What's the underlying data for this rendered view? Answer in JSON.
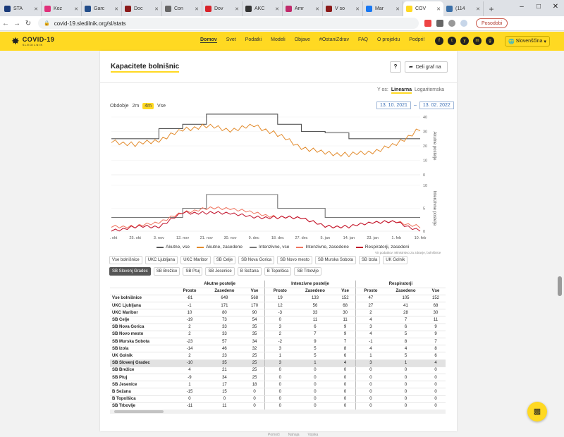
{
  "browser": {
    "tabs": [
      {
        "label": "STA",
        "color": "#1a3a7a"
      },
      {
        "label": "Koz",
        "color": "#e0307a"
      },
      {
        "label": "Garc",
        "color": "#234d8a"
      },
      {
        "label": "Doc",
        "color": "#8b1a1a"
      },
      {
        "label": "Con",
        "color": "#666666"
      },
      {
        "label": "Dov",
        "color": "#d8232a"
      },
      {
        "label": "AKC",
        "color": "#333333"
      },
      {
        "label": "Amr",
        "color": "#c02a6b"
      },
      {
        "label": "V so",
        "color": "#8b1a1a"
      },
      {
        "label": "Mar",
        "color": "#1877f2"
      },
      {
        "label": "COV",
        "color": "#ffd922"
      },
      {
        "label": "(114",
        "color": "#3a6fa8"
      }
    ],
    "url": "covid-19.sledilnik.org/sl/stats",
    "update_label": "Posodobi"
  },
  "site": {
    "logo_title": "COVID-19",
    "logo_sub": "SLEDILNIK",
    "nav": [
      "Domov",
      "Svet",
      "Podatki",
      "Modeli",
      "Objave",
      "#OstaniZdrav",
      "FAQ",
      "O projektu",
      "Podpri!"
    ],
    "active_nav": "Domov",
    "social": [
      "f",
      "t",
      "y",
      "m",
      "g"
    ],
    "language": "Slovenščina"
  },
  "panel": {
    "title": "Kapacitete bolnišnic",
    "help": "?",
    "share": "Deli graf na",
    "yaxis_label": "Y os:",
    "yaxis_linear": "Linearna",
    "yaxis_log": "Logaritemska",
    "period_label": "Obdobje",
    "period_options": [
      "2m",
      "4m",
      "Vse"
    ],
    "period_selected": "4m",
    "date_from": "13. 10. 2021",
    "date_sep": "–",
    "date_to": "13. 02. 2022",
    "chart1_axis_title": "Akutne postelje",
    "chart2_axis_title": "Intenzivne postelje",
    "source": "Vir podatkov: Ministrstvo za zdravje, bolnišnice"
  },
  "chart_data": [
    {
      "type": "line",
      "title": "",
      "ylabel": "Akutne postelje",
      "ylim": [
        0,
        40
      ],
      "yticks": [
        0,
        10,
        20,
        30,
        40
      ],
      "x": [
        "16. okt",
        "25. okt",
        "3. nov",
        "12. nov",
        "21. nov",
        "30. nov",
        "9. dec",
        "18. dec",
        "27. dec",
        "5. jan",
        "14. jan",
        "23. jan",
        "1. feb",
        "10. feb"
      ],
      "series": [
        {
          "name": "Akutne, vse",
          "color": "#555555",
          "values": [
            25,
            25,
            32,
            35,
            42,
            42,
            42,
            35,
            30,
            29,
            25,
            25,
            25,
            25
          ]
        },
        {
          "name": "Akutne, zasedene",
          "color": "#e28a2b",
          "values": [
            23,
            21,
            24,
            31,
            34,
            31,
            34,
            28,
            19,
            15,
            14,
            16,
            21,
            32
          ]
        }
      ]
    },
    {
      "type": "line",
      "title": "",
      "ylabel": "Intenzivne postelje",
      "ylim": [
        0,
        10
      ],
      "yticks": [
        0,
        5,
        10
      ],
      "x": [
        "16. okt",
        "25. okt",
        "3. nov",
        "12. nov",
        "21. nov",
        "30. nov",
        "9. dec",
        "18. dec",
        "27. dec",
        "5. jan",
        "14. jan",
        "23. jan",
        "1. feb",
        "10. feb"
      ],
      "series": [
        {
          "name": "Intenzivne, vse",
          "color": "#777777",
          "values": [
            3,
            3,
            3,
            5,
            8,
            8,
            8,
            5,
            5,
            3,
            3,
            3,
            3,
            3
          ]
        },
        {
          "name": "Intenzivne, zasedene",
          "color": "#f07560",
          "values": [
            1,
            1,
            2,
            4,
            5,
            5,
            4,
            3,
            3,
            1,
            1,
            2,
            2,
            1
          ]
        },
        {
          "name": "Respiratorji, zasedeni",
          "color": "#c0102a",
          "values": [
            0,
            1,
            1,
            4,
            4,
            4,
            3,
            3,
            3,
            1,
            1,
            2,
            2,
            0
          ]
        }
      ]
    }
  ],
  "legend": [
    "Akutne, vse",
    "Akutne, zasedene",
    "Intenzivne, vse",
    "Intenzivne, zasedene",
    "Respiratorji, zasedeni"
  ],
  "filters": [
    "Vse bolnišnice",
    "UKC Ljubljana",
    "UKC Maribor",
    "SB Celje",
    "SB Nova Gorica",
    "SB Novo mesto",
    "SB Murska Sobota",
    "SB Izola",
    "UK Golnik",
    "SB Slovenj Gradec",
    "SB Brežice",
    "SB Ptuj",
    "SB Jesenice",
    "B Sežana",
    "B Topolšica",
    "SB Trbovlje"
  ],
  "filter_selected": "SB Slovenj Gradec",
  "table": {
    "groups": [
      "Akutne postelje",
      "Intenzivne postelje",
      "Respiratorji"
    ],
    "subheaders": [
      "Prosto",
      "Zasedeno",
      "Vse"
    ],
    "selected_row": "SB Slovenj Gradec",
    "rows": [
      [
        "Vse bolnišnice",
        "-81",
        "649",
        "568",
        "19",
        "133",
        "152",
        "47",
        "105",
        "152"
      ],
      [
        "UKC Ljubljana",
        "-1",
        "171",
        "170",
        "12",
        "56",
        "68",
        "27",
        "41",
        "68"
      ],
      [
        "UKC Maribor",
        "10",
        "80",
        "90",
        "-3",
        "33",
        "30",
        "2",
        "28",
        "30"
      ],
      [
        "SB Celje",
        "-19",
        "73",
        "54",
        "0",
        "11",
        "11",
        "4",
        "7",
        "11"
      ],
      [
        "SB Nova Gorica",
        "2",
        "33",
        "35",
        "3",
        "6",
        "9",
        "3",
        "6",
        "9"
      ],
      [
        "SB Novo mesto",
        "2",
        "33",
        "35",
        "2",
        "7",
        "9",
        "4",
        "5",
        "9"
      ],
      [
        "SB Murska Sobota",
        "-23",
        "57",
        "34",
        "-2",
        "9",
        "7",
        "-1",
        "8",
        "7"
      ],
      [
        "SB Izola",
        "-14",
        "46",
        "32",
        "3",
        "5",
        "8",
        "4",
        "4",
        "8"
      ],
      [
        "UK Golnik",
        "2",
        "23",
        "25",
        "1",
        "5",
        "6",
        "1",
        "5",
        "6"
      ],
      [
        "SB Slovenj Gradec",
        "-10",
        "35",
        "25",
        "3",
        "1",
        "4",
        "3",
        "1",
        "4"
      ],
      [
        "SB Brežice",
        "4",
        "21",
        "25",
        "0",
        "0",
        "0",
        "0",
        "0",
        "0"
      ],
      [
        "SB Ptuj",
        "-9",
        "34",
        "25",
        "0",
        "0",
        "0",
        "0",
        "0",
        "0"
      ],
      [
        "SB Jesenice",
        "1",
        "17",
        "18",
        "0",
        "0",
        "0",
        "0",
        "0",
        "0"
      ],
      [
        "B Sežana",
        "-15",
        "15",
        "0",
        "0",
        "0",
        "0",
        "0",
        "0",
        "0"
      ],
      [
        "B Topolšica",
        "0",
        "0",
        "0",
        "0",
        "0",
        "0",
        "0",
        "0",
        "0"
      ],
      [
        "SB Trbovlje",
        "-11",
        "11",
        "0",
        "0",
        "0",
        "0",
        "0",
        "0",
        "0"
      ]
    ]
  },
  "bottom_tabs": [
    "Pomoči",
    "Nahaja",
    "Vojska"
  ],
  "fab_icon": "chart-icon"
}
